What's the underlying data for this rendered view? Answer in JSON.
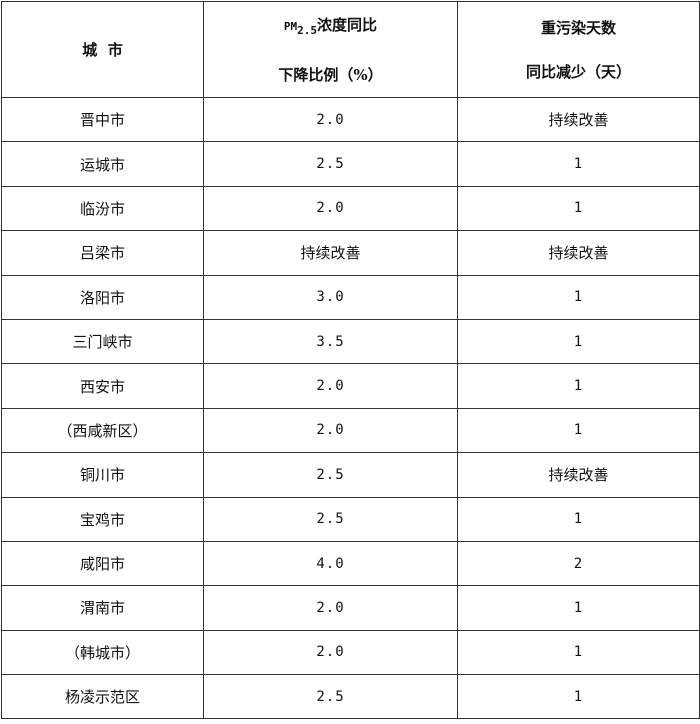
{
  "header": {
    "city": "城  市",
    "pm_prefix": "PM",
    "pm_sub": "2.5",
    "pm_line1_rest": "浓度同比",
    "pm_line2": "下降比例（%）",
    "days_line1": "重污染天数",
    "days_line2": "同比减少（天）"
  },
  "rows": [
    {
      "city": "晋中市",
      "pm": "2.0",
      "days": "持续改善"
    },
    {
      "city": "运城市",
      "pm": "2.5",
      "days": "1"
    },
    {
      "city": "临汾市",
      "pm": "2.0",
      "days": "1"
    },
    {
      "city": "吕梁市",
      "pm": "持续改善",
      "days": "持续改善"
    },
    {
      "city": "洛阳市",
      "pm": "3.0",
      "days": "1"
    },
    {
      "city": "三门峡市",
      "pm": "3.5",
      "days": "1"
    },
    {
      "city": "西安市",
      "pm": "2.0",
      "days": "1"
    },
    {
      "city": "（西咸新区）",
      "pm": "2.0",
      "days": "1"
    },
    {
      "city": "铜川市",
      "pm": "2.5",
      "days": "持续改善"
    },
    {
      "city": "宝鸡市",
      "pm": "2.5",
      "days": "1"
    },
    {
      "city": "咸阳市",
      "pm": "4.0",
      "days": "2"
    },
    {
      "city": "渭南市",
      "pm": "2.0",
      "days": "1"
    },
    {
      "city": "（韩城市）",
      "pm": "2.0",
      "days": "1"
    },
    {
      "city": "杨凌示范区",
      "pm": "2.5",
      "days": "1"
    }
  ]
}
